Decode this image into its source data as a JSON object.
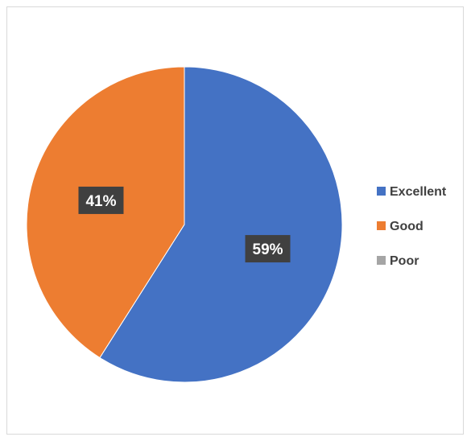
{
  "chart_data": {
    "type": "pie",
    "title": "",
    "categories": [
      "Excellent",
      "Good",
      "Poor"
    ],
    "values": [
      59,
      41,
      0
    ],
    "labels": [
      "59%",
      "41%",
      ""
    ],
    "colors": [
      "#4472c4",
      "#ed7d31",
      "#a5a5a5"
    ],
    "label_background": "#404040",
    "legend_position": "right"
  }
}
